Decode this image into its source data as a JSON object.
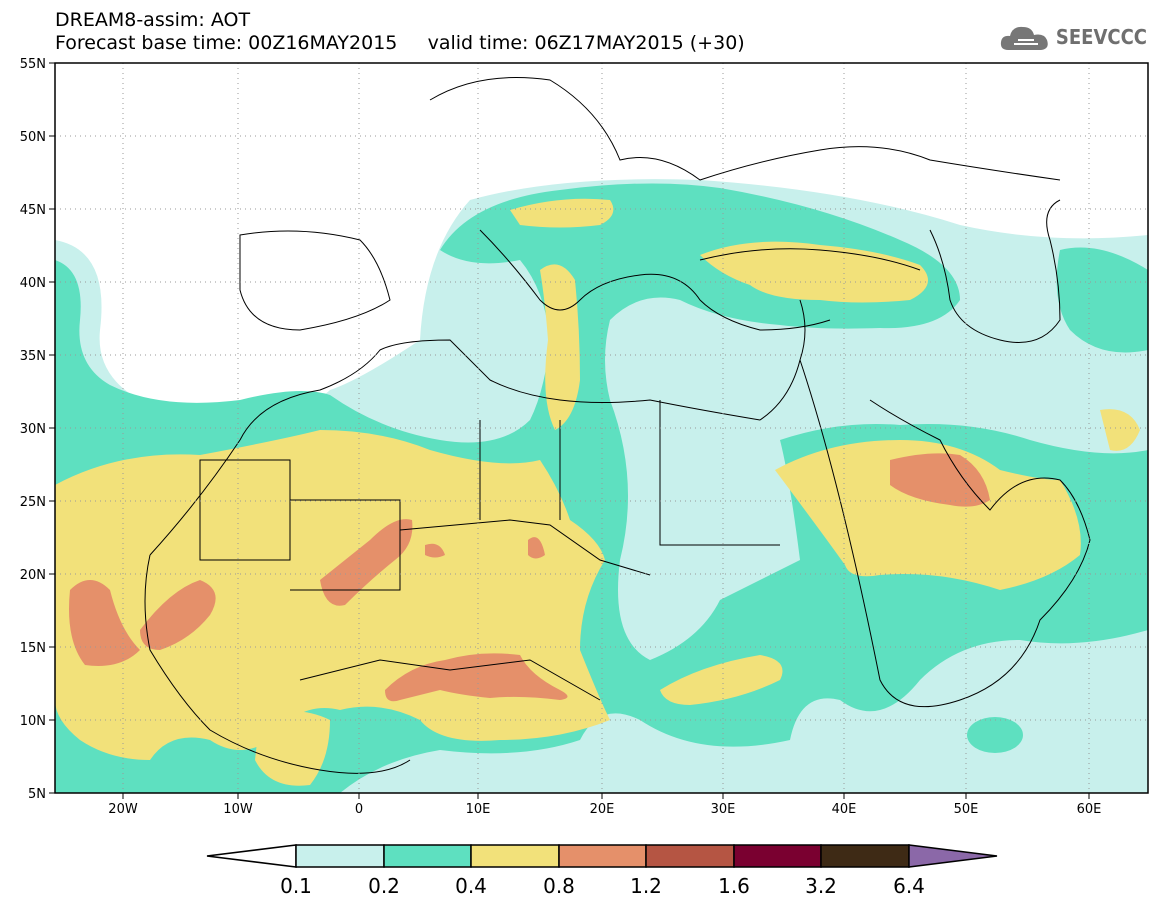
{
  "header": {
    "title_line1": "DREAM8-assim: AOT",
    "title_line2": "Forecast base time: 00Z16MAY2015     valid time: 06Z17MAY2015 (+30)",
    "logo_text": "SEEVCCC"
  },
  "map": {
    "projection": "lat-lon",
    "lon_range": [
      -25,
      65
    ],
    "lat_range": [
      5,
      55
    ],
    "lat_labels": [
      "5N",
      "10N",
      "15N",
      "20N",
      "25N",
      "30N",
      "35N",
      "40N",
      "45N",
      "50N",
      "55N"
    ],
    "lon_labels": [
      "20W",
      "10W",
      "0",
      "10E",
      "20E",
      "30E",
      "40E",
      "50E",
      "60E"
    ],
    "variable": "AOT",
    "grid": "dotted"
  },
  "colorbar": {
    "levels": [
      "0.1",
      "0.2",
      "0.4",
      "0.8",
      "1.2",
      "1.6",
      "3.2",
      "6.4"
    ],
    "colors": [
      "#ffffff",
      "#c8f0ec",
      "#5ee0c0",
      "#f2e17a",
      "#e5906a",
      "#b55543",
      "#7a0030",
      "#3e2a15",
      "#8b68a8"
    ]
  }
}
